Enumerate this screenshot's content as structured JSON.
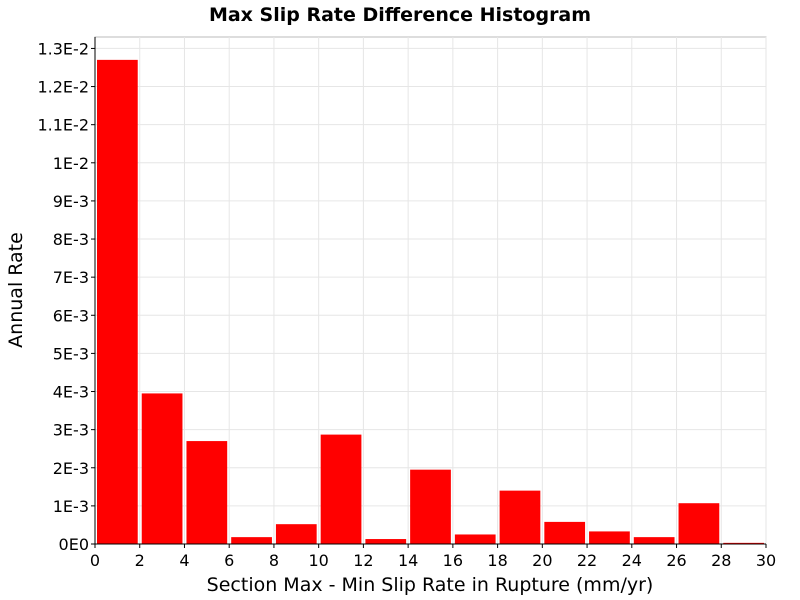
{
  "chart_data": {
    "type": "bar",
    "title": "Max Slip Rate Difference Histogram",
    "xlabel": "Section Max - Min Slip Rate in Rupture (mm/yr)",
    "ylabel": "Annual Rate",
    "xlim": [
      0,
      30
    ],
    "ylim": [
      0,
      0.0133
    ],
    "grid": true,
    "bar_color": "#ff0000",
    "x_ticks": [
      {
        "value": 0,
        "label": "0"
      },
      {
        "value": 2,
        "label": "2"
      },
      {
        "value": 4,
        "label": "4"
      },
      {
        "value": 6,
        "label": "6"
      },
      {
        "value": 8,
        "label": "8"
      },
      {
        "value": 10,
        "label": "10"
      },
      {
        "value": 12,
        "label": "12"
      },
      {
        "value": 14,
        "label": "14"
      },
      {
        "value": 16,
        "label": "16"
      },
      {
        "value": 18,
        "label": "18"
      },
      {
        "value": 20,
        "label": "20"
      },
      {
        "value": 22,
        "label": "22"
      },
      {
        "value": 24,
        "label": "24"
      },
      {
        "value": 26,
        "label": "26"
      },
      {
        "value": 28,
        "label": "28"
      },
      {
        "value": 30,
        "label": "30"
      }
    ],
    "y_ticks": [
      {
        "value": 0,
        "label": "0E0"
      },
      {
        "value": 0.001,
        "label": "1E-3"
      },
      {
        "value": 0.002,
        "label": "2E-3"
      },
      {
        "value": 0.003,
        "label": "3E-3"
      },
      {
        "value": 0.004,
        "label": "4E-3"
      },
      {
        "value": 0.005,
        "label": "5E-3"
      },
      {
        "value": 0.006,
        "label": "6E-3"
      },
      {
        "value": 0.007,
        "label": "7E-3"
      },
      {
        "value": 0.008,
        "label": "8E-3"
      },
      {
        "value": 0.009,
        "label": "9E-3"
      },
      {
        "value": 0.01,
        "label": "1E-2"
      },
      {
        "value": 0.011,
        "label": "1.1E-2"
      },
      {
        "value": 0.012,
        "label": "1.2E-2"
      },
      {
        "value": 0.013,
        "label": "1.3E-2"
      }
    ],
    "bins": [
      {
        "x0": 0,
        "x1": 2,
        "value": 0.0127
      },
      {
        "x0": 2,
        "x1": 4,
        "value": 0.00395
      },
      {
        "x0": 4,
        "x1": 6,
        "value": 0.0027
      },
      {
        "x0": 6,
        "x1": 8,
        "value": 0.00018
      },
      {
        "x0": 8,
        "x1": 10,
        "value": 0.00052
      },
      {
        "x0": 10,
        "x1": 12,
        "value": 0.00287
      },
      {
        "x0": 12,
        "x1": 14,
        "value": 0.00013
      },
      {
        "x0": 14,
        "x1": 16,
        "value": 0.00195
      },
      {
        "x0": 16,
        "x1": 18,
        "value": 0.00025
      },
      {
        "x0": 18,
        "x1": 20,
        "value": 0.0014
      },
      {
        "x0": 20,
        "x1": 22,
        "value": 0.00058
      },
      {
        "x0": 22,
        "x1": 24,
        "value": 0.00033
      },
      {
        "x0": 24,
        "x1": 26,
        "value": 0.00018
      },
      {
        "x0": 26,
        "x1": 28,
        "value": 0.00107
      },
      {
        "x0": 28,
        "x1": 30,
        "value": 3e-05
      }
    ]
  }
}
